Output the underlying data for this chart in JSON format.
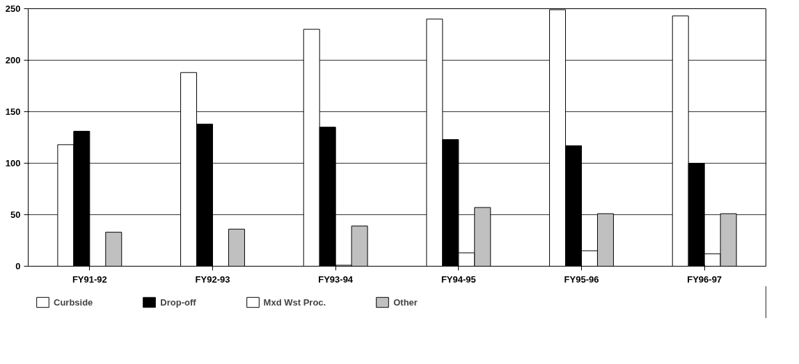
{
  "chart_data": {
    "type": "bar",
    "categories": [
      "FY91-92",
      "FY92-93",
      "FY93-94",
      "FY94-95",
      "FY95-96",
      "FY96-97"
    ],
    "series": [
      {
        "name": "Curbside",
        "color": "#ffffff",
        "values": [
          118,
          188,
          230,
          240,
          249,
          243
        ]
      },
      {
        "name": "Drop-off",
        "color": "#000000",
        "values": [
          131,
          138,
          135,
          123,
          117,
          100
        ]
      },
      {
        "name": "Mxd Wst Proc.",
        "color": "#ffffff",
        "values": [
          null,
          null,
          1,
          13,
          15,
          12
        ]
      },
      {
        "name": "Other",
        "color": "#c0c0c0",
        "values": [
          33,
          36,
          39,
          57,
          51,
          51
        ]
      }
    ],
    "ylim": [
      0,
      250
    ],
    "yticks": [
      0,
      50,
      100,
      150,
      200,
      250
    ],
    "grid": "y",
    "legend": "bottom"
  }
}
